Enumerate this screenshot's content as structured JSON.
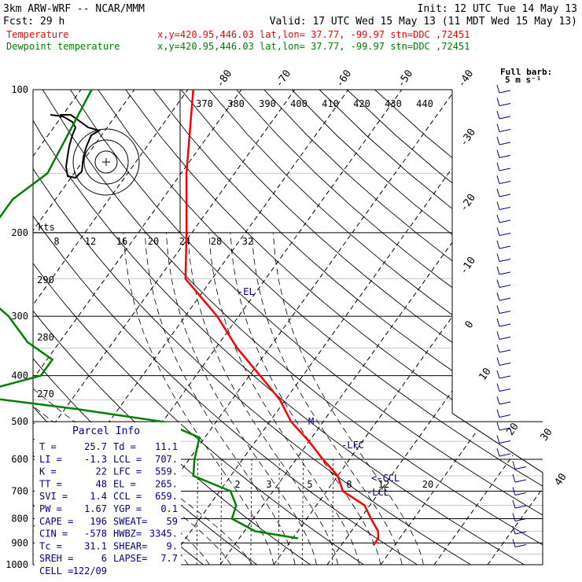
{
  "header": {
    "line1_left": "3km ARW-WRF -- NCAR/MMM",
    "line1_right": "Init: 12 UTC Tue 14 May 13",
    "line2_left": "Fcst:    29 h",
    "line2_right": "Valid: 17 UTC Wed 15 May 13 (11 MDT Wed 15 May 13)",
    "temp_label": "Temperature",
    "temp_meta": "x,y=420.95,446.03   lat,lon= 37.77, -99.97   stn=DDC ,72451",
    "dew_label": "Dewpoint temperature",
    "dew_meta": "x,y=420.95,446.03   lat,lon= 37.77, -99.97   stn=DDC ,72451"
  },
  "colors": {
    "temperature": "#ff0000",
    "dewpoint": "#008000",
    "parcel": "#00008b",
    "text": "#000000"
  },
  "chart_data": {
    "type": "line",
    "pressure_levels_hpa": [
      100,
      200,
      300,
      400,
      500,
      600,
      700,
      800,
      900,
      1000
    ],
    "isotherm_top_labels": [
      "-80",
      "-70",
      "-60",
      "-50",
      "-40"
    ],
    "isotherm_right_labels": [
      "-30",
      "-20",
      "-10",
      "0",
      "10",
      "20",
      "30",
      "40"
    ],
    "dry_adiabat_labels": [
      "370",
      "380",
      "390",
      "400",
      "410",
      "420",
      "430",
      "440"
    ],
    "moist_adiabat_labels": [
      "8",
      "12",
      "16",
      "20",
      "24",
      "28",
      "32"
    ],
    "left_theta_labels": [
      "290",
      "280",
      "270"
    ],
    "mixing_ratio_labels": [
      "2",
      "3",
      "5",
      "8",
      "12",
      "20"
    ],
    "series": [
      {
        "name": "Temperature",
        "points": [
          [
            100,
            -69
          ],
          [
            150,
            -59
          ],
          [
            200,
            -51
          ],
          [
            250,
            -45
          ],
          [
            300,
            -34
          ],
          [
            350,
            -26
          ],
          [
            400,
            -18
          ],
          [
            450,
            -11
          ],
          [
            500,
            -6
          ],
          [
            550,
            0
          ],
          [
            600,
            5
          ],
          [
            650,
            10
          ],
          [
            700,
            13
          ],
          [
            750,
            19
          ],
          [
            800,
            22
          ],
          [
            850,
            25
          ],
          [
            880,
            26
          ],
          [
            910,
            26
          ]
        ]
      },
      {
        "name": "Dewpoint temperature",
        "points": [
          [
            100,
            -88
          ],
          [
            150,
            -85
          ],
          [
            170,
            -88
          ],
          [
            190,
            -88
          ],
          [
            210,
            -86
          ],
          [
            250,
            -86
          ],
          [
            300,
            -73
          ],
          [
            340,
            -66
          ],
          [
            370,
            -59
          ],
          [
            400,
            -59
          ],
          [
            440,
            -70
          ],
          [
            470,
            -48
          ],
          [
            500,
            -30
          ],
          [
            540,
            -21
          ],
          [
            600,
            -19
          ],
          [
            650,
            -17
          ],
          [
            700,
            -8
          ],
          [
            750,
            -5
          ],
          [
            800,
            -4
          ],
          [
            850,
            2
          ],
          [
            880,
            11
          ]
        ]
      }
    ],
    "annotations": [
      "-EL",
      "-LFC",
      "<-CCL",
      "-LCL",
      "M"
    ],
    "hodograph_units": "kts",
    "wind_legend_title": "Full barb:",
    "wind_legend_value": "5 m s⁻¹"
  },
  "parcel_info": {
    "title": "Parcel Info",
    "rows": [
      [
        "T   =",
        "25.7",
        "Td  =",
        "11.1"
      ],
      [
        "LI  =",
        "-1.3",
        "LCL =",
        "707."
      ],
      [
        "K   =",
        "22",
        "LFC =",
        "559."
      ],
      [
        "TT  =",
        "48",
        "EL  =",
        "265."
      ],
      [
        "SVI =",
        "1.4",
        "CCL =",
        "659."
      ],
      [
        "PW  =",
        "1.67",
        "YGP =",
        "0.1"
      ],
      [
        "CAPE =",
        "196",
        "SWEAT=",
        "59"
      ],
      [
        "CIN  =",
        "-578",
        "HWBZ=",
        "3345."
      ],
      [
        "Tc  =",
        "31.1",
        "SHEAR=",
        "9."
      ],
      [
        "SREH =",
        "6",
        "LAPSE=",
        "7.7"
      ],
      [
        "CELL =",
        "122/09",
        "",
        ""
      ]
    ]
  }
}
